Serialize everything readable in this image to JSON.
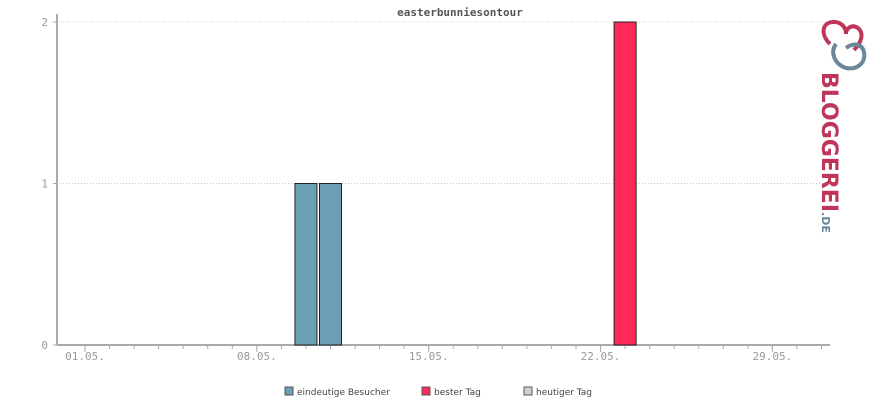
{
  "chart_data": {
    "type": "bar",
    "title": "easterbunniesontour",
    "x_tick_labels": [
      "01.05.",
      "08.05.",
      "15.05.",
      "22.05.",
      "29.05."
    ],
    "ylim": [
      0,
      2
    ],
    "y_ticks": [
      "0",
      "1",
      "2"
    ],
    "grid": true,
    "legend_position": "bottom-center",
    "series": [
      {
        "name": "eindeutige Besucher",
        "color": "#6a9fb5",
        "points": [
          {
            "day": "10.05.",
            "value": 1
          },
          {
            "day": "11.05.",
            "value": 1
          }
        ]
      },
      {
        "name": "bester Tag",
        "color": "#ff2a5a",
        "points": [
          {
            "day": "23.05.",
            "value": 2
          }
        ]
      },
      {
        "name": "heutiger Tag",
        "color": "#d0d0d0",
        "points": []
      }
    ]
  },
  "logo": {
    "brand": "BLOGGEREI",
    "suffix": ".DE",
    "colors": {
      "primary": "#c0355a",
      "secondary": "#6e8798"
    }
  }
}
